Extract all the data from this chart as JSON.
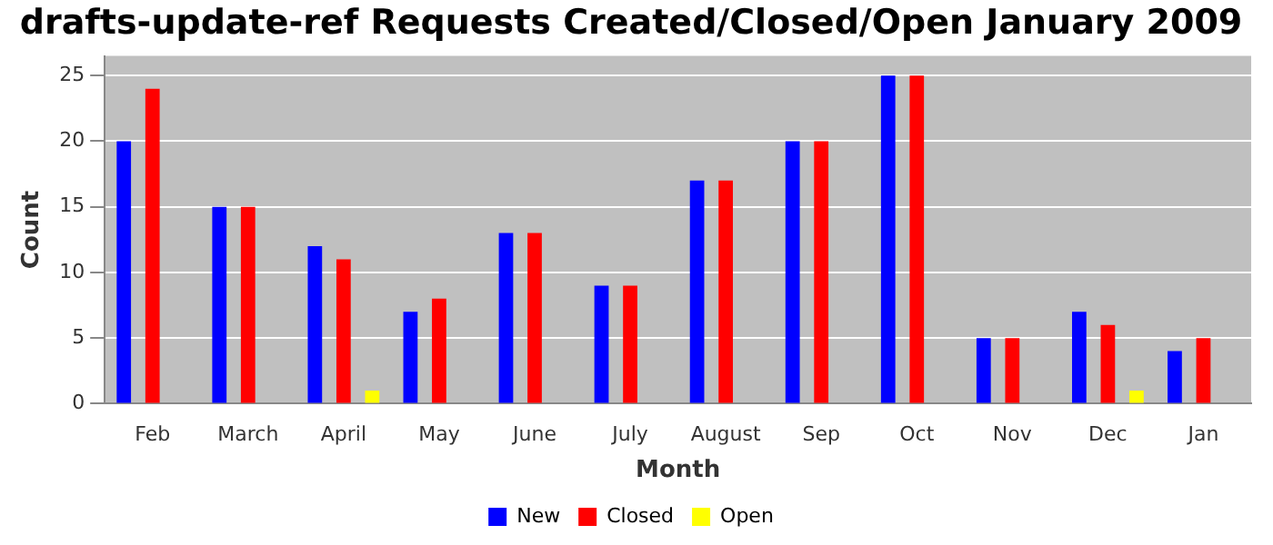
{
  "chart_data": {
    "type": "bar",
    "title": "drafts-update-ref Requests Created/Closed/Open January 2009",
    "xlabel": "Month",
    "ylabel": "Count",
    "categories": [
      "Feb",
      "March",
      "April",
      "May",
      "June",
      "July",
      "August",
      "Sep",
      "Oct",
      "Nov",
      "Dec",
      "Jan"
    ],
    "series": [
      {
        "name": "New",
        "color": "#0000ff",
        "values": [
          20,
          15,
          12,
          7,
          13,
          9,
          17,
          20,
          25,
          5,
          7,
          4
        ]
      },
      {
        "name": "Closed",
        "color": "#ff0000",
        "values": [
          24,
          15,
          11,
          8,
          13,
          9,
          17,
          20,
          25,
          5,
          6,
          5
        ]
      },
      {
        "name": "Open",
        "color": "#ffff00",
        "values": [
          0,
          0,
          1,
          0,
          0,
          0,
          0,
          0,
          0,
          0,
          1,
          0
        ]
      }
    ],
    "ylim": [
      0,
      26.5
    ],
    "yticks": [
      0,
      5,
      10,
      15,
      20,
      25
    ],
    "grid": "y",
    "legend": "bottom"
  }
}
